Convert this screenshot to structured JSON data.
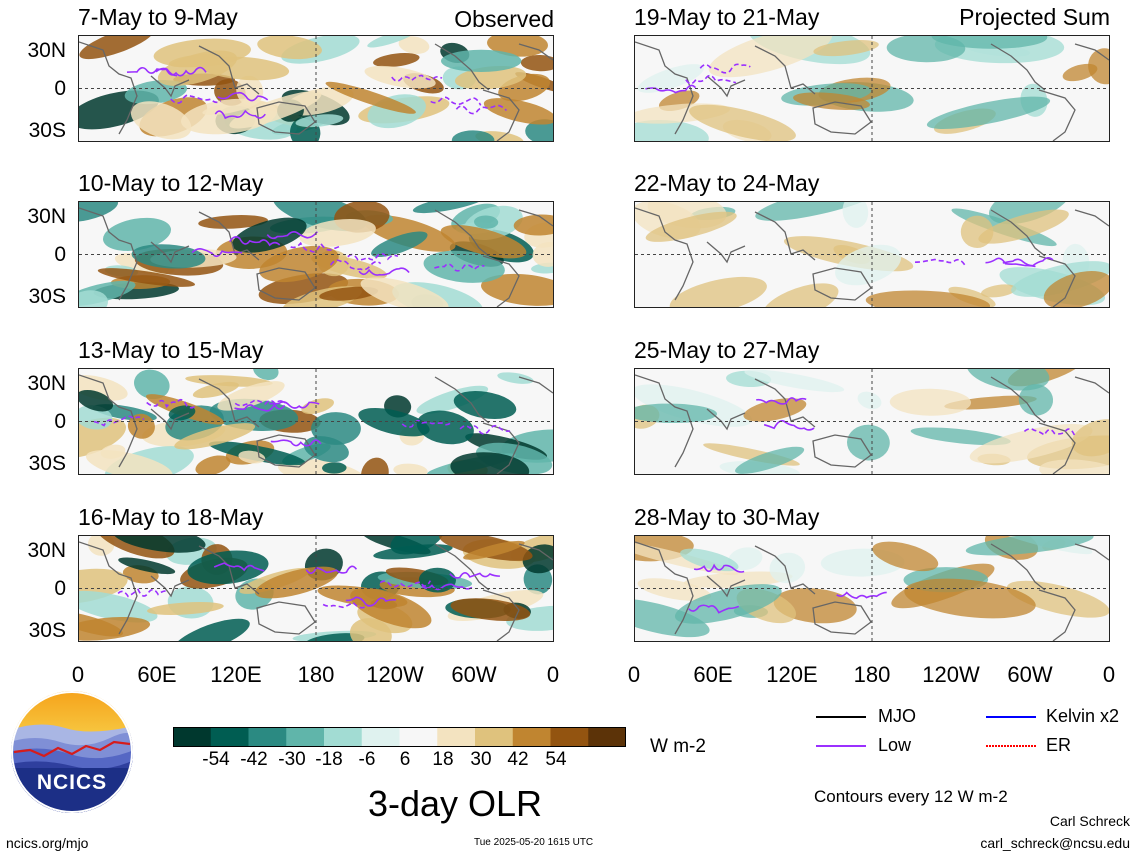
{
  "panels": {
    "left": [
      {
        "title": "7-May to 9-May",
        "tag": "Observed"
      },
      {
        "title": "10-May to 12-May",
        "tag": ""
      },
      {
        "title": "13-May to 15-May",
        "tag": ""
      },
      {
        "title": "16-May to 18-May",
        "tag": ""
      }
    ],
    "right": [
      {
        "title": "19-May to 21-May",
        "tag": "Projected Sum"
      },
      {
        "title": "22-May to 24-May",
        "tag": ""
      },
      {
        "title": "25-May to 27-May",
        "tag": ""
      },
      {
        "title": "28-May to 30-May",
        "tag": ""
      }
    ]
  },
  "axes": {
    "y_labels": [
      "30N",
      "0",
      "30S"
    ],
    "x_labels": [
      "0",
      "60E",
      "120E",
      "180",
      "120W",
      "60W",
      "0"
    ]
  },
  "colorbar": {
    "colors": [
      "#00382e",
      "#005d52",
      "#2b8a82",
      "#60b5aa",
      "#a2dcd3",
      "#dff2ef",
      "#f7f7f7",
      "#f3e3c0",
      "#dfc27d",
      "#c08530",
      "#935410",
      "#5c3308"
    ],
    "labels": [
      "-54",
      "-42",
      "-30",
      "-18",
      "-6",
      "6",
      "18",
      "30",
      "42",
      "54"
    ],
    "units": "W m-2"
  },
  "legend": {
    "items": [
      {
        "label": "MJO",
        "color": "#000000"
      },
      {
        "label": "Kelvin x2",
        "color": "#0000ff"
      },
      {
        "label": "Low",
        "color": "#9b30ff"
      },
      {
        "label": "ER",
        "color": "#ff0000"
      }
    ],
    "contour_note": "Contours every 12 W m-2"
  },
  "logo": {
    "text": "NCICS"
  },
  "main_title": "3-day OLR",
  "footer": {
    "url": "ncics.org/mjo",
    "timestamp": "Tue 2025-05-20 1615 UTC",
    "author": "Carl Schreck",
    "email": "carl_schreck@ncsu.edu"
  }
}
